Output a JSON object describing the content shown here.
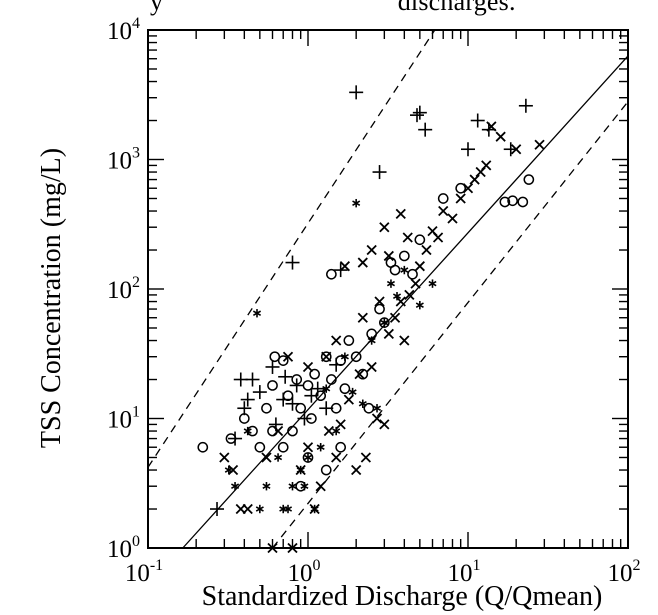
{
  "figure": {
    "cut_title_fragment": "y                                   discharges."
  },
  "chart_data": {
    "type": "scatter",
    "title": "",
    "xlabel": "Standardized Discharge (Q/Qmean)",
    "ylabel": "TSS Concentration (mg/L)",
    "x_scale": "log",
    "y_scale": "log",
    "xlim": [
      0.1,
      100
    ],
    "ylim": [
      1,
      10000
    ],
    "x_ticks": [
      {
        "base": "10",
        "exp": "-1",
        "value": 0.1
      },
      {
        "base": "10",
        "exp": "0",
        "value": 1
      },
      {
        "base": "10",
        "exp": "1",
        "value": 10
      },
      {
        "base": "10",
        "exp": "2",
        "value": 100
      }
    ],
    "y_ticks": [
      {
        "base": "10",
        "exp": "0",
        "value": 1
      },
      {
        "base": "10",
        "exp": "1",
        "value": 10
      },
      {
        "base": "10",
        "exp": "2",
        "value": 100
      },
      {
        "base": "10",
        "exp": "3",
        "value": 1000
      },
      {
        "base": "10",
        "exp": "4",
        "value": 10000
      }
    ],
    "grid": false,
    "legend": "none",
    "lines": [
      {
        "style": "solid",
        "points": [
          [
            0.165,
            1
          ],
          [
            100,
            6300
          ]
        ]
      },
      {
        "style": "dashed",
        "points": [
          [
            0.1,
            4.2
          ],
          [
            6.2,
            10000
          ]
        ]
      },
      {
        "style": "dashed",
        "points": [
          [
            0.6,
            1
          ],
          [
            100,
            2800
          ]
        ]
      }
    ],
    "series": [
      {
        "marker": "+",
        "points": [
          [
            0.27,
            2
          ],
          [
            0.35,
            7
          ],
          [
            0.38,
            20
          ],
          [
            0.4,
            12
          ],
          [
            0.42,
            14
          ],
          [
            0.45,
            20
          ],
          [
            0.5,
            16
          ],
          [
            0.6,
            25
          ],
          [
            0.63,
            9
          ],
          [
            0.7,
            14
          ],
          [
            0.72,
            21
          ],
          [
            0.8,
            13
          ],
          [
            0.85,
            18
          ],
          [
            0.95,
            10
          ],
          [
            1.05,
            15
          ],
          [
            1.15,
            17
          ],
          [
            1.3,
            12
          ],
          [
            1.5,
            26
          ],
          [
            0.8,
            160
          ],
          [
            1.6,
            140
          ],
          [
            2.0,
            3300
          ],
          [
            2.8,
            800
          ],
          [
            4.8,
            2200
          ],
          [
            5.0,
            2300
          ],
          [
            5.4,
            1700
          ],
          [
            10.0,
            1200
          ],
          [
            11.5,
            2000
          ],
          [
            13.5,
            1700
          ],
          [
            18.5,
            1200
          ],
          [
            23.0,
            2600
          ]
        ]
      },
      {
        "marker": "x",
        "points": [
          [
            0.3,
            5
          ],
          [
            0.34,
            4
          ],
          [
            0.38,
            2
          ],
          [
            0.42,
            2
          ],
          [
            0.55,
            5
          ],
          [
            0.6,
            1
          ],
          [
            0.65,
            8
          ],
          [
            0.8,
            1
          ],
          [
            0.9,
            4
          ],
          [
            1.0,
            6
          ],
          [
            1.1,
            2
          ],
          [
            1.2,
            3
          ],
          [
            1.35,
            8
          ],
          [
            1.5,
            5
          ],
          [
            1.6,
            9
          ],
          [
            1.8,
            14
          ],
          [
            2.0,
            4
          ],
          [
            2.1,
            22
          ],
          [
            2.3,
            5
          ],
          [
            2.5,
            25
          ],
          [
            2.7,
            10
          ],
          [
            3.0,
            9
          ],
          [
            3.2,
            45
          ],
          [
            3.5,
            60
          ],
          [
            3.8,
            80
          ],
          [
            4.0,
            40
          ],
          [
            4.3,
            90
          ],
          [
            4.7,
            110
          ],
          [
            5.0,
            150
          ],
          [
            5.5,
            200
          ],
          [
            6.0,
            280
          ],
          [
            6.5,
            250
          ],
          [
            7.0,
            400
          ],
          [
            8.0,
            350
          ],
          [
            9.0,
            500
          ],
          [
            10.0,
            600
          ],
          [
            11.0,
            700
          ],
          [
            12.0,
            800
          ],
          [
            13.0,
            900
          ],
          [
            14.0,
            1800
          ],
          [
            16.0,
            1500
          ],
          [
            20.0,
            1200
          ],
          [
            28.0,
            1300
          ],
          [
            2.2,
            160
          ],
          [
            2.5,
            200
          ],
          [
            3.0,
            300
          ],
          [
            3.2,
            180
          ],
          [
            3.8,
            380
          ],
          [
            4.2,
            250
          ],
          [
            1.7,
            150
          ],
          [
            2.8,
            80
          ],
          [
            2.2,
            60
          ],
          [
            1.3,
            30
          ],
          [
            1.5,
            40
          ],
          [
            1.0,
            25
          ],
          [
            0.75,
            30
          ]
        ]
      },
      {
        "marker": "o",
        "points": [
          [
            0.22,
            6
          ],
          [
            0.33,
            7
          ],
          [
            0.4,
            10
          ],
          [
            0.45,
            8
          ],
          [
            0.5,
            6
          ],
          [
            0.55,
            12
          ],
          [
            0.6,
            18
          ],
          [
            0.62,
            30
          ],
          [
            0.7,
            28
          ],
          [
            0.75,
            15
          ],
          [
            0.8,
            8
          ],
          [
            0.85,
            20
          ],
          [
            0.9,
            12
          ],
          [
            1.0,
            18
          ],
          [
            1.05,
            10
          ],
          [
            1.1,
            22
          ],
          [
            1.2,
            15
          ],
          [
            1.3,
            30
          ],
          [
            1.4,
            20
          ],
          [
            1.5,
            12
          ],
          [
            1.6,
            28
          ],
          [
            1.7,
            17
          ],
          [
            1.8,
            40
          ],
          [
            2.0,
            30
          ],
          [
            2.2,
            22
          ],
          [
            2.4,
            12
          ],
          [
            2.5,
            45
          ],
          [
            2.8,
            70
          ],
          [
            3.0,
            55
          ],
          [
            3.3,
            160
          ],
          [
            3.5,
            140
          ],
          [
            4.0,
            180
          ],
          [
            4.5,
            130
          ],
          [
            5.0,
            240
          ],
          [
            7.0,
            500
          ],
          [
            9.0,
            600
          ],
          [
            17.0,
            470
          ],
          [
            19.0,
            480
          ],
          [
            22.0,
            470
          ],
          [
            24.0,
            700
          ],
          [
            1.4,
            130
          ],
          [
            0.9,
            3
          ],
          [
            1.0,
            5
          ],
          [
            1.3,
            4
          ],
          [
            1.6,
            6
          ],
          [
            0.7,
            6
          ],
          [
            0.6,
            8
          ]
        ]
      },
      {
        "marker": "*",
        "points": [
          [
            0.32,
            4
          ],
          [
            0.35,
            3
          ],
          [
            0.42,
            8
          ],
          [
            0.48,
            65
          ],
          [
            0.55,
            3
          ],
          [
            0.65,
            5
          ],
          [
            0.7,
            2
          ],
          [
            0.8,
            3
          ],
          [
            0.9,
            4
          ],
          [
            1.0,
            5
          ],
          [
            1.1,
            2
          ],
          [
            1.3,
            17
          ],
          [
            1.5,
            8
          ],
          [
            1.7,
            30
          ],
          [
            1.9,
            16
          ],
          [
            2.0,
            460
          ],
          [
            2.2,
            13
          ],
          [
            2.5,
            40
          ],
          [
            3.0,
            55
          ],
          [
            3.3,
            110
          ],
          [
            3.6,
            88
          ],
          [
            4.0,
            140
          ],
          [
            5.0,
            75
          ],
          [
            6.0,
            110
          ],
          [
            2.7,
            12
          ],
          [
            0.5,
            2
          ],
          [
            0.75,
            2
          ],
          [
            0.95,
            3
          ],
          [
            1.2,
            6
          ]
        ]
      }
    ]
  }
}
